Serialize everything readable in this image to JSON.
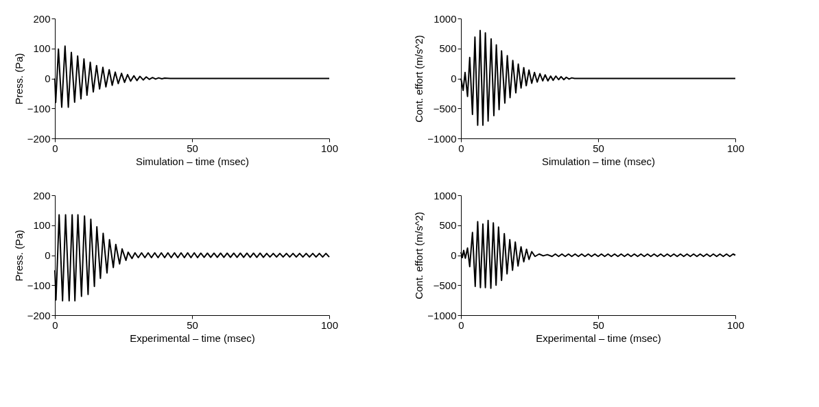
{
  "chart_data": [
    {
      "type": "line",
      "xlabel": "Simulation – time (msec)",
      "ylabel": "Press. (Pa)",
      "xlim": [
        0,
        100
      ],
      "ylim": [
        -200,
        200
      ],
      "xticks": [
        0,
        50,
        100
      ],
      "yticks": [
        -200,
        -100,
        0,
        100,
        200
      ],
      "x": [
        0,
        0.3,
        1.3,
        2.5,
        3.7,
        4.9,
        6.0,
        7.2,
        8.3,
        9.5,
        10.6,
        11.7,
        12.9,
        14.0,
        15.2,
        16.3,
        17.5,
        18.6,
        19.8,
        20.9,
        22.0,
        23.1,
        24.3,
        25.4,
        26.5,
        27.6,
        28.8,
        29.9,
        31.0,
        32.2,
        33.3,
        34.4,
        35.6,
        36.7,
        37.8,
        39.0,
        40.0,
        42.0,
        100
      ],
      "series": [
        {
          "color": "#000000",
          "values": [
            0,
            -80,
            98,
            -96,
            108,
            -96,
            87,
            -79,
            75,
            -68,
            65,
            -56,
            54,
            -45,
            43,
            -35,
            37,
            -28,
            29,
            -23,
            21,
            -17,
            17,
            -13,
            13,
            -9,
            9,
            -7,
            7,
            -5,
            5,
            -3,
            3,
            -2,
            2,
            -1,
            1,
            0,
            0
          ]
        }
      ]
    },
    {
      "type": "line",
      "xlabel": "Simulation – time (msec)",
      "ylabel": "Cont. effort (m/s^2)",
      "xlim": [
        0,
        100
      ],
      "ylim": [
        -1000,
        1000
      ],
      "xticks": [
        0,
        50,
        100
      ],
      "yticks": [
        -1000,
        -500,
        0,
        500,
        1000
      ],
      "x": [
        0,
        0.8,
        1.5,
        2.4,
        3.2,
        4.2,
        5.1,
        6.1,
        7.0,
        8.0,
        8.9,
        9.9,
        11.0,
        12.0,
        12.9,
        13.9,
        14.8,
        16.0,
        16.9,
        17.9,
        18.9,
        20.0,
        20.9,
        21.9,
        22.9,
        23.8,
        24.8,
        25.8,
        26.8,
        27.8,
        28.8,
        29.8,
        30.7,
        31.7,
        32.7,
        33.6,
        34.6,
        35.6,
        36.5,
        37.5,
        38.4,
        39.4,
        40.4,
        41.4,
        42.4,
        44.4,
        100
      ],
      "series": [
        {
          "color": "#000000",
          "values": [
            0,
            -200,
            100,
            -300,
            350,
            -600,
            690,
            -780,
            800,
            -780,
            760,
            -710,
            660,
            -620,
            560,
            -520,
            460,
            -410,
            380,
            -320,
            300,
            -240,
            240,
            -160,
            180,
            -120,
            140,
            -80,
            100,
            -60,
            80,
            -40,
            60,
            -40,
            40,
            -30,
            40,
            -20,
            30,
            -20,
            20,
            -10,
            10,
            0,
            0,
            0,
            0
          ]
        }
      ]
    },
    {
      "type": "line",
      "xlabel": "Experimental – time (msec)",
      "ylabel": "Press. (Pa)",
      "xlim": [
        0,
        100
      ],
      "ylim": [
        -200,
        200
      ],
      "xticks": [
        0,
        50,
        100
      ],
      "yticks": [
        -200,
        -100,
        0,
        100,
        200
      ],
      "x": [
        0,
        0.4,
        1.55,
        2.8,
        3.9,
        5.2,
        6.3,
        7.3,
        8.4,
        9.7,
        10.8,
        12.1,
        13.1,
        14.4,
        15.3,
        16.6,
        17.6,
        19.0,
        19.9,
        21.3,
        22.2,
        23.6,
        24.5,
        25.9,
        26.7,
        28.1,
        29.2,
        30.4,
        31.6,
        32.8,
        34.0,
        35.2,
        36.4,
        37.6,
        38.8,
        40.0,
        41.2,
        42.4,
        43.6,
        44.8,
        46.0,
        47.2,
        48.4,
        49.6,
        50.8,
        52.0,
        53.2,
        54.4,
        55.6,
        56.8,
        58.0,
        59.2,
        60.4,
        61.6,
        62.8,
        64.0,
        65.2,
        66.4,
        67.6,
        68.8,
        70.0,
        71.2,
        72.4,
        73.6,
        74.8,
        76.0,
        77.2,
        78.4,
        79.6,
        80.8,
        82.0,
        83.2,
        84.4,
        85.6,
        86.8,
        88.0,
        89.2,
        90.4,
        91.6,
        92.8,
        94.0,
        95.2,
        96.4,
        97.6,
        98.8,
        100
      ],
      "series": [
        {
          "color": "#000000",
          "values": [
            -50,
            -149,
            135,
            -152,
            135,
            -152,
            135,
            -152,
            135,
            -137,
            131,
            -131,
            120,
            -104,
            95,
            -77,
            73,
            -59,
            52,
            -41,
            36,
            -29,
            21,
            -17,
            10,
            -11,
            8,
            -8,
            8,
            -8,
            8,
            -8,
            8,
            -8,
            8,
            -8,
            8,
            -8,
            8,
            -8,
            8,
            -8,
            8,
            -8,
            8,
            -8,
            7,
            -7,
            7,
            -7,
            7,
            -7,
            7,
            -7,
            7,
            -7,
            7,
            -7,
            7,
            -7,
            7,
            -7,
            7,
            -7,
            7,
            -7,
            6,
            -6,
            6,
            -6,
            6,
            -6,
            6,
            -6,
            6,
            -6,
            6,
            -6,
            6,
            -6,
            6,
            -6,
            6,
            -6,
            6,
            -6
          ]
        }
      ]
    },
    {
      "type": "line",
      "xlabel": "Experimental – time (msec)",
      "ylabel": "Cont. effort (m/s^2)",
      "xlim": [
        0,
        100
      ],
      "ylim": [
        -1000,
        1000
      ],
      "xticks": [
        0,
        50,
        100
      ],
      "yticks": [
        -1000,
        -500,
        0,
        500,
        1000
      ],
      "x": [
        0,
        0.5,
        1.0,
        1.6,
        2.4,
        3.2,
        4.2,
        5.2,
        6.1,
        7.1,
        8.0,
        8.9,
        9.9,
        10.9,
        11.8,
        12.8,
        13.7,
        14.8,
        15.8,
        16.8,
        17.8,
        18.8,
        19.8,
        20.8,
        21.9,
        22.9,
        23.9,
        24.8,
        25.8,
        27.0,
        28.5,
        30.0,
        31.5,
        33.2,
        34.4,
        35.6,
        36.8,
        38.0,
        39.2,
        40.4,
        41.6,
        42.8,
        44.0,
        45.2,
        46.4,
        47.6,
        48.8,
        50.0,
        51.2,
        52.4,
        53.6,
        54.8,
        56.0,
        57.2,
        58.4,
        59.6,
        60.8,
        62.0,
        63.2,
        64.4,
        65.6,
        66.8,
        68.0,
        69.2,
        70.4,
        71.6,
        72.8,
        74.0,
        75.2,
        76.4,
        77.6,
        78.8,
        80.0,
        81.2,
        82.4,
        83.6,
        84.8,
        86.0,
        87.2,
        88.4,
        89.6,
        90.8,
        92.0,
        93.2,
        94.4,
        95.6,
        96.8,
        98.0,
        99.2,
        100
      ],
      "series": [
        {
          "color": "#000000",
          "values": [
            50,
            -40,
            80,
            -50,
            120,
            -190,
            380,
            -520,
            560,
            -540,
            520,
            -540,
            580,
            -550,
            540,
            -500,
            470,
            -420,
            360,
            -310,
            260,
            -250,
            220,
            -180,
            140,
            -110,
            100,
            -70,
            60,
            -20,
            20,
            -10,
            10,
            -20,
            20,
            -20,
            20,
            -20,
            20,
            -20,
            20,
            -20,
            20,
            -20,
            20,
            -20,
            20,
            -20,
            20,
            -20,
            20,
            -20,
            20,
            -20,
            20,
            -20,
            20,
            -20,
            20,
            -20,
            20,
            -20,
            20,
            -20,
            20,
            -20,
            20,
            -20,
            20,
            -20,
            20,
            -20,
            20,
            -20,
            20,
            -20,
            20,
            -20,
            20,
            -20,
            20,
            -20,
            20,
            -20,
            20,
            -20,
            20,
            -20,
            20,
            0
          ]
        }
      ]
    }
  ]
}
